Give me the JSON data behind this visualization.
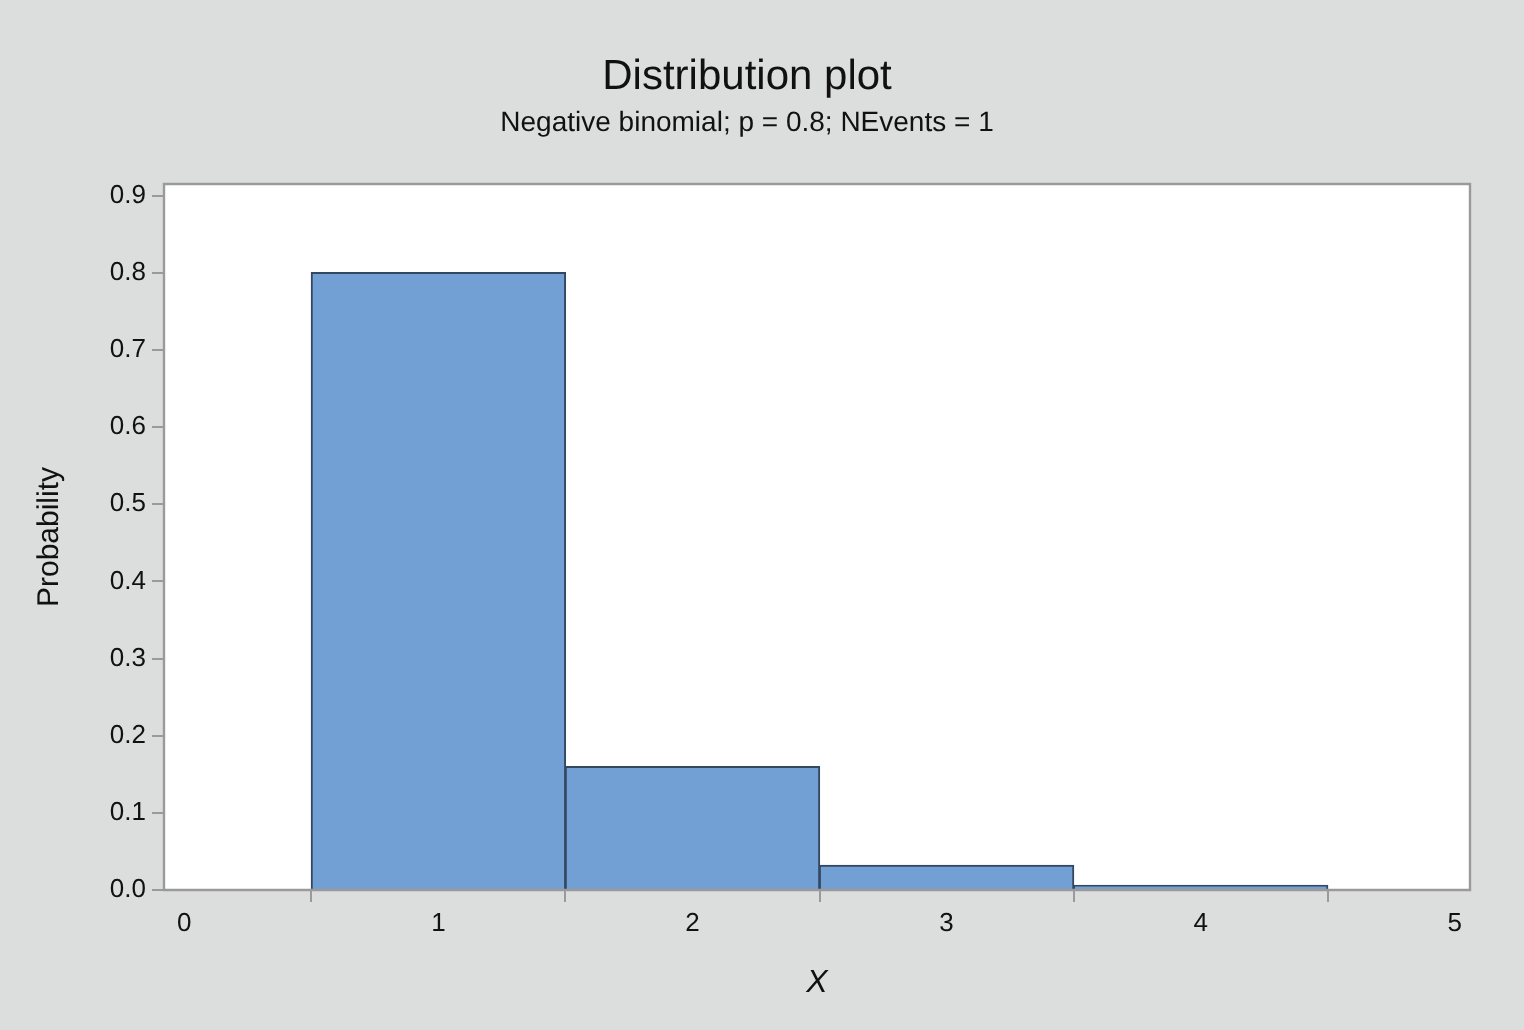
{
  "chart_data": {
    "type": "histogram",
    "title": "Distribution plot",
    "subtitle": "Negative binomial; p = 0.8; NEvents = 1",
    "xlabel": "X",
    "ylabel": "Probability",
    "bins": [
      0.5,
      1.5,
      2.5,
      3.5,
      4.5
    ],
    "values": [
      0.8,
      0.16,
      0.032,
      0.006
    ],
    "color": "#729fd4",
    "xlim": [
      -0.08,
      5.06
    ],
    "xticks": [
      0,
      1,
      2,
      3,
      4,
      5
    ],
    "ylim": [
      0,
      0.915
    ],
    "yticks": [
      {
        "value": 0,
        "label": "0.0"
      },
      0.1,
      0.2,
      0.3,
      0.4,
      0.5,
      0.6,
      0.7,
      0.8,
      0.9
    ],
    "grid": false,
    "legend": false
  }
}
